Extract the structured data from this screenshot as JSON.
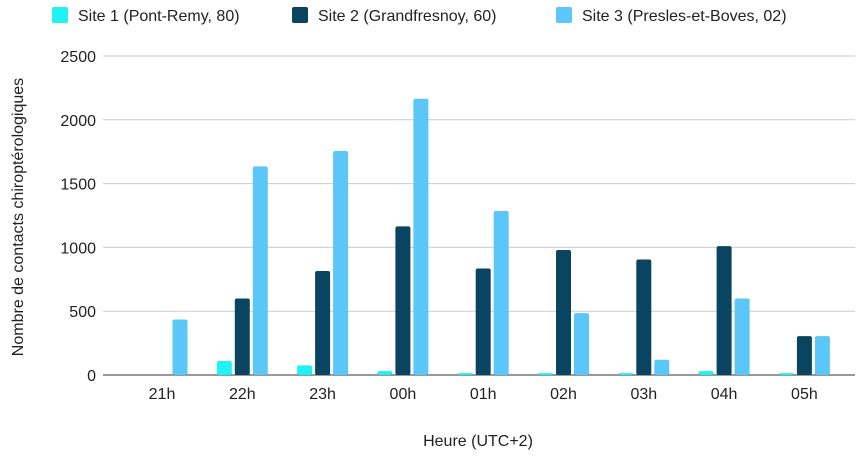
{
  "chart_data": {
    "type": "bar",
    "title": "",
    "xlabel": "Heure (UTC+2)",
    "ylabel": "Nombre de contacts chiroptérologiques",
    "categories": [
      "21h",
      "22h",
      "23h",
      "00h",
      "01h",
      "02h",
      "03h",
      "04h",
      "05h"
    ],
    "ylim": [
      0,
      2500
    ],
    "yticks": [
      0,
      500,
      1000,
      1500,
      2000,
      2500
    ],
    "grid": true,
    "legend_position": "top",
    "series": [
      {
        "name": "Site 1 (Pont-Remy, 80)",
        "color": "#1ef2f2",
        "values": [
          0,
          110,
          75,
          30,
          15,
          15,
          15,
          30,
          15
        ]
      },
      {
        "name": "Site 2 (Grandfresnoy, 60)",
        "color": "#094460",
        "values": [
          0,
          600,
          815,
          1165,
          835,
          980,
          905,
          1010,
          305
        ]
      },
      {
        "name": "Site 3 (Presles-et-Boves, 02)",
        "color": "#5bc6f8",
        "values": [
          435,
          1635,
          1755,
          2165,
          1285,
          485,
          120,
          600,
          305
        ]
      }
    ]
  }
}
